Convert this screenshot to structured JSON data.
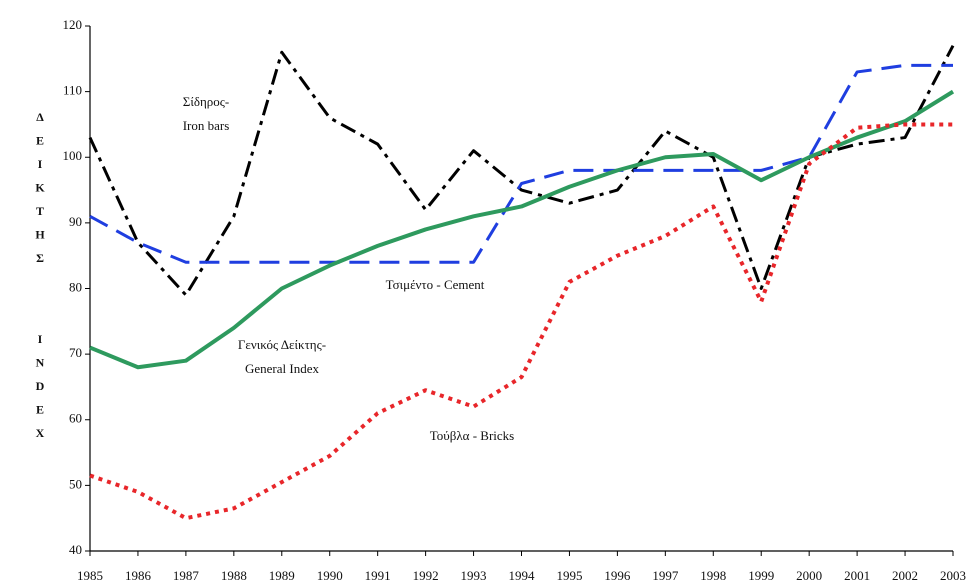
{
  "chart_data": {
    "type": "line",
    "y_label": [
      "ΔΕΙΚΤΗΣ",
      "INDEX"
    ],
    "categories": [
      "1985",
      "1986",
      "1987",
      "1988",
      "1989",
      "1990",
      "1991",
      "1992",
      "1993",
      "1994",
      "1995",
      "1996",
      "1997",
      "1998",
      "1999",
      "2000",
      "2001",
      "2002",
      "2003"
    ],
    "series": [
      {
        "name": "Σίδηρος-\nIron bars",
        "color": "#000000",
        "style": "dashdot",
        "values": [
          103,
          87,
          79,
          91,
          116,
          106,
          102,
          92,
          101,
          95,
          93,
          95,
          104,
          100,
          80,
          100,
          102,
          103,
          117
        ]
      },
      {
        "name": "Τσιμέντο - Cement",
        "color": "#1f3ee0",
        "style": "dashed",
        "values": [
          91,
          87,
          84,
          84,
          84,
          84,
          84,
          84,
          84,
          96,
          98,
          98,
          98,
          98,
          98,
          100,
          113,
          114,
          114
        ]
      },
      {
        "name": "Γενικός Δείκτης-\nGeneral Index",
        "color": "#2e9a5e",
        "style": "solid",
        "values": [
          71,
          68,
          69,
          74,
          80,
          83.5,
          86.5,
          89,
          91,
          92.5,
          95.5,
          98,
          100,
          100.5,
          96.5,
          100,
          103,
          105.5,
          110
        ]
      },
      {
        "name": "Τούβλα - Bricks",
        "color": "#e8262a",
        "style": "dotted",
        "values": [
          51.5,
          49,
          45,
          46.5,
          50.5,
          54.5,
          61,
          64.5,
          62,
          66.5,
          81,
          85,
          88,
          92.5,
          78,
          99,
          104.5,
          105,
          105
        ]
      }
    ],
    "ylim": [
      40,
      120
    ],
    "yticks": [
      40,
      50,
      60,
      70,
      80,
      90,
      100,
      110,
      120
    ],
    "grid": false
  }
}
